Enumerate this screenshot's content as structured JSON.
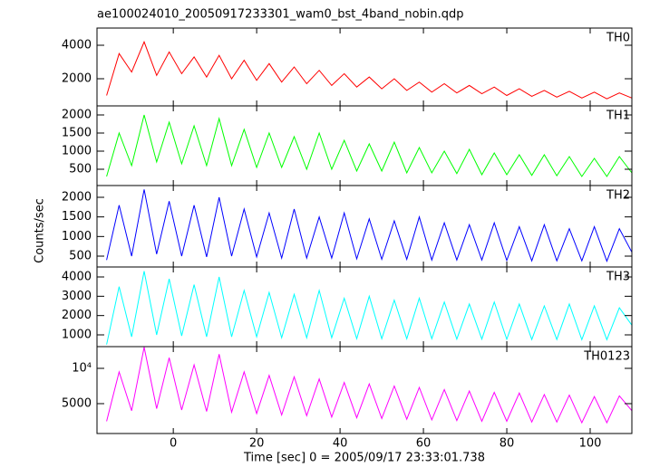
{
  "chart_data": {
    "type": "line",
    "title": "ae100024010_20050917233301_wam0_bst_4band_nobin.qdp",
    "xlabel": "Time [sec] 0 = 2005/09/17 23:33:01.738",
    "ylabel": "Counts/sec",
    "xlim": [
      -18.3,
      110
    ],
    "xticks": [
      0,
      20,
      40,
      60,
      80,
      100
    ],
    "x": [
      -16,
      -13,
      -10,
      -7,
      -4,
      -1,
      2,
      5,
      8,
      11,
      14,
      17,
      20,
      23,
      26,
      29,
      32,
      35,
      38,
      41,
      44,
      47,
      50,
      53,
      56,
      59,
      62,
      65,
      68,
      71,
      74,
      77,
      80,
      83,
      86,
      89,
      92,
      95,
      98,
      101,
      104,
      107,
      110
    ],
    "series": [
      {
        "name": "TH0",
        "color": "#ff0000",
        "ylim": [
          378,
          5027
        ],
        "yticks": [
          2000,
          4000
        ],
        "values": [
          1000,
          3500,
          2400,
          4200,
          2200,
          3600,
          2300,
          3300,
          2100,
          3400,
          2000,
          3100,
          1900,
          2900,
          1800,
          2700,
          1700,
          2500,
          1600,
          2300,
          1500,
          2100,
          1400,
          2000,
          1300,
          1800,
          1200,
          1700,
          1150,
          1600,
          1100,
          1500,
          1000,
          1400,
          950,
          1300,
          900,
          1250,
          850,
          1200,
          800,
          1150,
          850
        ]
      },
      {
        "name": "TH1",
        "color": "#00ff00",
        "ylim": [
          50,
          2250
        ],
        "yticks": [
          500,
          1000,
          1500,
          2000
        ],
        "values": [
          300,
          1500,
          600,
          2000,
          700,
          1800,
          650,
          1700,
          600,
          1900,
          600,
          1600,
          550,
          1500,
          550,
          1400,
          500,
          1500,
          500,
          1300,
          450,
          1200,
          450,
          1250,
          400,
          1100,
          400,
          1000,
          380,
          1050,
          350,
          950,
          350,
          900,
          330,
          900,
          320,
          850,
          300,
          800,
          300,
          850,
          400
        ]
      },
      {
        "name": "TH2",
        "color": "#0000ff",
        "ylim": [
          223,
          2300
        ],
        "yticks": [
          500,
          1000,
          1500,
          2000
        ],
        "values": [
          400,
          1800,
          500,
          2200,
          550,
          1900,
          500,
          1800,
          480,
          2000,
          500,
          1700,
          480,
          1600,
          450,
          1700,
          450,
          1500,
          450,
          1600,
          430,
          1450,
          420,
          1400,
          420,
          1500,
          400,
          1350,
          400,
          1300,
          400,
          1350,
          390,
          1250,
          380,
          1300,
          380,
          1200,
          380,
          1250,
          370,
          1200,
          600
        ]
      },
      {
        "name": "TH3",
        "color": "#00ffff",
        "ylim": [
          391,
          4516
        ],
        "yticks": [
          1000,
          2000,
          3000,
          4000
        ],
        "values": [
          500,
          3500,
          900,
          4300,
          1000,
          3900,
          950,
          3600,
          900,
          4000,
          900,
          3300,
          900,
          3200,
          850,
          3100,
          850,
          3300,
          850,
          2900,
          800,
          3000,
          800,
          2800,
          800,
          2900,
          800,
          2700,
          780,
          2600,
          780,
          2700,
          770,
          2600,
          760,
          2500,
          760,
          2600,
          750,
          2500,
          750,
          2400,
          1500
        ]
      },
      {
        "name": "TH0123",
        "color": "#ff00ff",
        "ylim": [
          769,
          13077
        ],
        "yticks": [
          5000,
          {
            "value": 10000,
            "label": "10⁴"
          }
        ],
        "values": [
          2500,
          9500,
          4000,
          13000,
          4300,
          11500,
          4100,
          10500,
          3900,
          12000,
          3800,
          9500,
          3600,
          9000,
          3400,
          8800,
          3300,
          8500,
          3100,
          8000,
          3000,
          7800,
          2900,
          7500,
          2800,
          7300,
          2700,
          7000,
          2600,
          6800,
          2500,
          6600,
          2500,
          6500,
          2400,
          6300,
          2400,
          6200,
          2300,
          6000,
          2300,
          6100,
          4000
        ]
      }
    ]
  }
}
